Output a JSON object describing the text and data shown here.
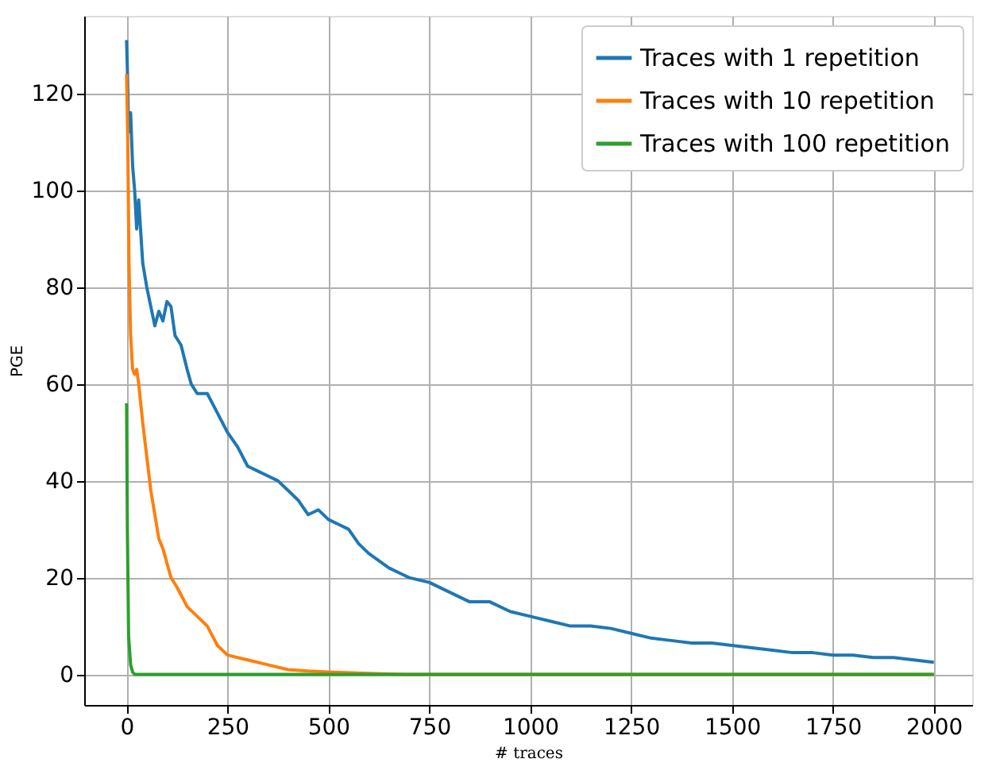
{
  "chart_data": {
    "type": "line",
    "xlabel": "# traces",
    "ylabel": "PGE",
    "xlim": [
      -105,
      2095
    ],
    "ylim": [
      -6.3,
      136
    ],
    "xticks": [
      0,
      250,
      500,
      750,
      1000,
      1250,
      1500,
      1750,
      2000
    ],
    "yticks": [
      0,
      20,
      40,
      60,
      80,
      100,
      120
    ],
    "grid": true,
    "legend": "top right",
    "line_style": "solid",
    "marker": "none",
    "series": [
      {
        "name": "Traces with 1 repetition",
        "color": "#1f77b4",
        "x": [
          0,
          2,
          5,
          10,
          15,
          20,
          25,
          30,
          40,
          50,
          60,
          70,
          80,
          90,
          100,
          110,
          120,
          135,
          150,
          160,
          175,
          200,
          225,
          250,
          275,
          300,
          325,
          350,
          375,
          400,
          425,
          450,
          475,
          500,
          525,
          550,
          575,
          600,
          650,
          700,
          750,
          800,
          850,
          900,
          950,
          1000,
          1050,
          1100,
          1150,
          1200,
          1250,
          1300,
          1350,
          1400,
          1450,
          1500,
          1550,
          1600,
          1650,
          1700,
          1750,
          1800,
          1850,
          1900,
          1950,
          2000
        ],
        "values": [
          131,
          125,
          112,
          116,
          105,
          100,
          92,
          98,
          85,
          80,
          76,
          72,
          75,
          73,
          77,
          76,
          70,
          68,
          63,
          60,
          58,
          58,
          54,
          50,
          47,
          43,
          42,
          41,
          40,
          38,
          36,
          33,
          34,
          32,
          31,
          30,
          27,
          25,
          22,
          20,
          19,
          17,
          15,
          15,
          13,
          12,
          11,
          10,
          10,
          9.5,
          8.5,
          7.5,
          7,
          6.5,
          6.5,
          6,
          5.5,
          5,
          4.5,
          4.5,
          4,
          4,
          3.5,
          3.5,
          3,
          2.5
        ]
      },
      {
        "name": "Traces with 10 repetition",
        "color": "#ff7f0e",
        "x": [
          0,
          3,
          6,
          10,
          15,
          20,
          25,
          30,
          40,
          50,
          60,
          70,
          80,
          90,
          100,
          110,
          125,
          150,
          175,
          200,
          225,
          250,
          275,
          300,
          350,
          400,
          450,
          500,
          600,
          700,
          2000
        ],
        "values": [
          124,
          110,
          85,
          70,
          63,
          62,
          63,
          60,
          52,
          45,
          38,
          33,
          28,
          26,
          23,
          20,
          18,
          14,
          12,
          10,
          6,
          4,
          3.5,
          3,
          2,
          1,
          0.7,
          0.5,
          0.2,
          0,
          0
        ]
      },
      {
        "name": "Traces with 100 repetition",
        "color": "#2ca02c",
        "x": [
          0,
          2,
          5,
          10,
          15,
          20,
          2000
        ],
        "values": [
          56,
          30,
          8,
          2,
          0.5,
          0,
          0
        ]
      }
    ]
  }
}
